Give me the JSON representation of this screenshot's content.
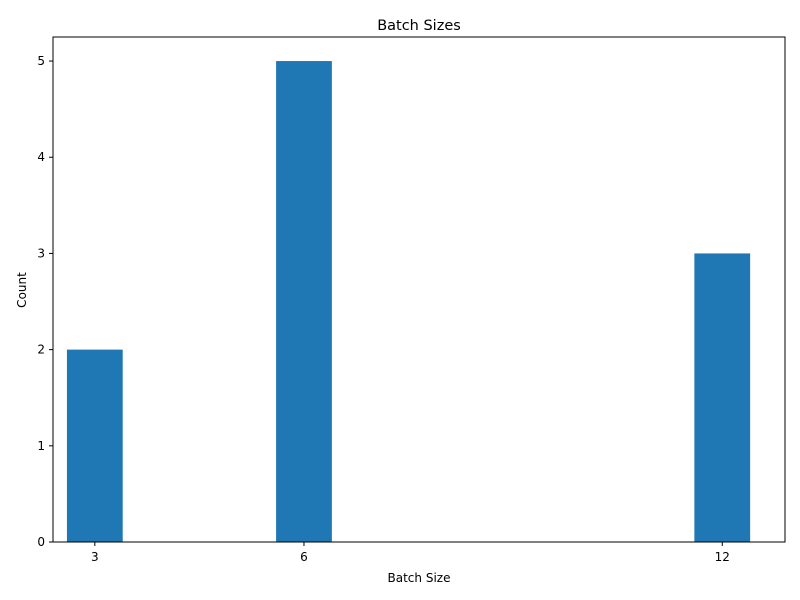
{
  "chart_data": {
    "type": "bar",
    "title": "Batch Sizes",
    "xlabel": "Batch Size",
    "ylabel": "Count",
    "x": [
      3,
      6,
      12
    ],
    "values": [
      2,
      5,
      3
    ],
    "x_ticks": [
      3,
      6,
      12
    ],
    "y_ticks": [
      0,
      1,
      2,
      3,
      4,
      5
    ],
    "xlim": [
      2.4,
      12.9
    ],
    "ylim": [
      0,
      5.25
    ],
    "bar_width": 0.8,
    "grid": false,
    "legend": "none",
    "colors": {
      "bar": "#1f77b4",
      "axes": "#000000",
      "background": "#ffffff"
    }
  }
}
